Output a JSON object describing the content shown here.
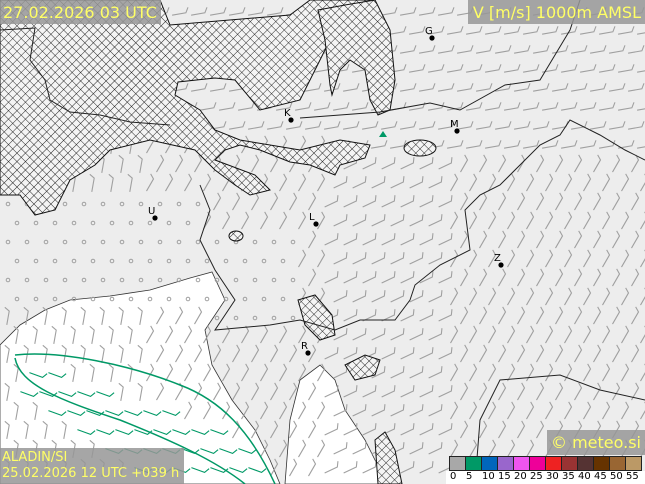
{
  "header": {
    "valid_time": "27.02.2026 03 UTC",
    "field": "V [m/s] 1000m AMSL"
  },
  "footer": {
    "model": "ALADIN/SI",
    "run": "25.02.2026 12 UTC +039 h",
    "copyright": "© meteo.si"
  },
  "legend": {
    "unit": "m/s",
    "labels": [
      "0",
      "5",
      "10",
      "15",
      "20",
      "25",
      "30",
      "35",
      "40",
      "45",
      "50",
      "55"
    ],
    "colors": [
      "#a8a8a8",
      "#009966",
      "#0066bb",
      "#9966cc",
      "#ee55ee",
      "#ee0099",
      "#ee2222",
      "#993333",
      "#553333",
      "#663300",
      "#996633",
      "#bb9966"
    ]
  },
  "cities": [
    {
      "label": "G"
    },
    {
      "label": "K"
    },
    {
      "label": "M"
    },
    {
      "label": "U"
    },
    {
      "label": "L"
    },
    {
      "label": "Z"
    },
    {
      "label": "R"
    }
  ],
  "colors": {
    "text_accent": "#ffff66",
    "box_background": "#969696",
    "wind_barb": "#a0a0a0",
    "contour_5ms": "#009966",
    "land": "#ededed",
    "sea": "#ffffff"
  },
  "map": {
    "hatching": "cloud/humidity cross-hatch",
    "icons": [
      "wind-barb",
      "city-dot",
      "station-triangle"
    ]
  }
}
